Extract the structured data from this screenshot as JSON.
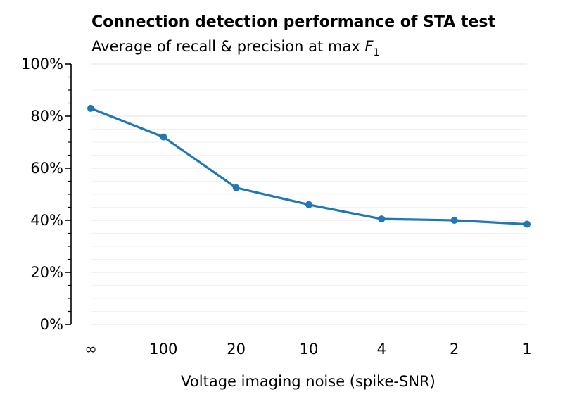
{
  "chart_data": {
    "type": "line",
    "title": "Connection detection performance of STA test",
    "subtitle_prefix": "Average of recall & precision at max ",
    "subtitle_math": "F",
    "subtitle_sub": "1",
    "xlabel": "Voltage imaging noise (spike-SNR)",
    "ylabel": "",
    "categories": [
      "∞",
      "100",
      "20",
      "10",
      "4",
      "2",
      "1"
    ],
    "ylim": [
      0,
      100
    ],
    "yticks": [
      0,
      20,
      40,
      60,
      80,
      100
    ],
    "ytick_labels": [
      "0%",
      "20%",
      "40%",
      "60%",
      "80%",
      "100%"
    ],
    "y_minor_step": 5,
    "grid": true,
    "series": [
      {
        "values": [
          83,
          72,
          52.5,
          46,
          40.5,
          40,
          38.5
        ],
        "color": "#1f77b4"
      }
    ]
  }
}
